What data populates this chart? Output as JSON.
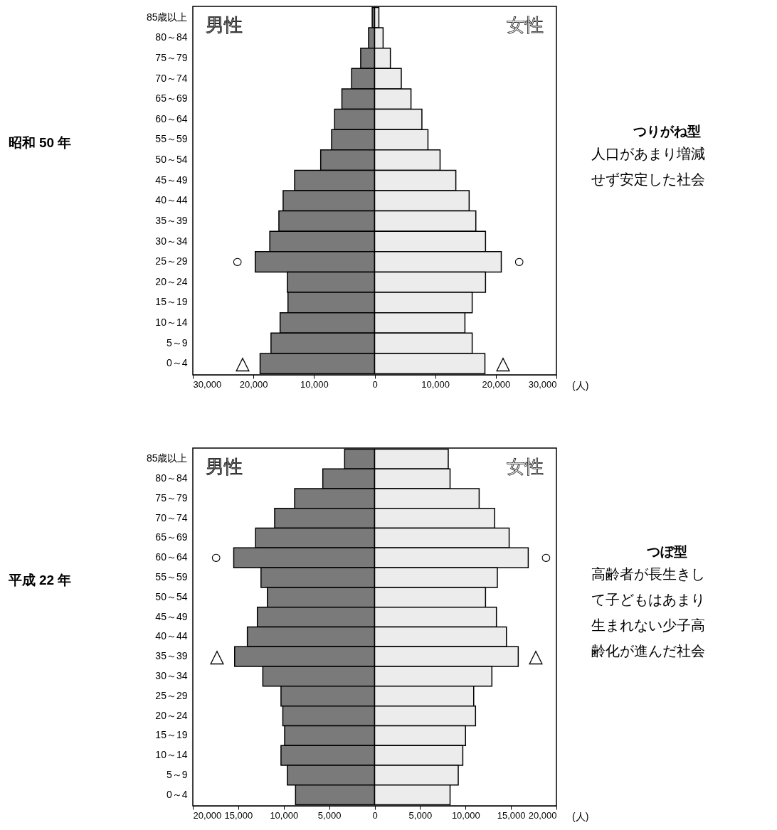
{
  "chart_data": [
    {
      "type": "bar",
      "orientation": "horizontal",
      "stacked": true,
      "xlabel": "(人)",
      "grid": false,
      "categories": [
        "85歳以上",
        "80～84",
        "75～79",
        "70～74",
        "65～69",
        "60～64",
        "55～59",
        "50～54",
        "45～49",
        "40～44",
        "35～39",
        "30～34",
        "25～29",
        "20～24",
        "15～19",
        "10～14",
        "5～9",
        "0～4"
      ],
      "series": [
        {
          "name": "男性",
          "color": "#7a7a7a",
          "values": [
            -400,
            -1000,
            -2300,
            -3800,
            -5400,
            -6600,
            -7100,
            -8900,
            -13200,
            -15100,
            -15800,
            -17300,
            -19700,
            -14400,
            -14300,
            -15600,
            -17100,
            -18900
          ]
        },
        {
          "name": "女性",
          "color": "#ececec",
          "values": [
            700,
            1400,
            2600,
            4400,
            6000,
            7800,
            8800,
            10800,
            13400,
            15600,
            16700,
            18300,
            20900,
            18300,
            16100,
            14900,
            16100,
            18200
          ]
        }
      ],
      "xlim": [
        -30000,
        30000
      ],
      "xticks": [
        {
          "value": -30000,
          "label": "30,000"
        },
        {
          "value": -20000,
          "label": "20,000"
        },
        {
          "value": -10000,
          "label": "10,000"
        },
        0,
        {
          "value": 10000,
          "label": "10,000"
        },
        {
          "value": 20000,
          "label": "20,000"
        },
        {
          "value": 30000,
          "label": "30,000"
        }
      ],
      "annotations": [
        "昭和 50 年",
        "つりがね型",
        "人口があまり増減",
        "せず安定した社会",
        {
          "text": "○",
          "x": -19700,
          "y": "25～29"
        },
        {
          "text": "○",
          "x": 20900,
          "y": "25～29"
        },
        {
          "text": "△",
          "x": -18900,
          "y": "0～4"
        },
        {
          "text": "△",
          "x": 18200,
          "y": "0～4"
        }
      ]
    },
    {
      "type": "bar",
      "orientation": "horizontal",
      "stacked": true,
      "xlabel": "(人)",
      "grid": false,
      "categories": [
        "85歳以上",
        "80～84",
        "75～79",
        "70～74",
        "65～69",
        "60～64",
        "55～59",
        "50～54",
        "45～49",
        "40～44",
        "35～39",
        "30～34",
        "25～29",
        "20～24",
        "15～19",
        "10～14",
        "5～9",
        "0～4"
      ],
      "series": [
        {
          "name": "男性",
          "color": "#7a7a7a",
          "values": [
            -3300,
            -5700,
            -8800,
            -11000,
            -13100,
            -15500,
            -12500,
            -11800,
            -12900,
            -14000,
            -15400,
            -12300,
            -10300,
            -10100,
            -9900,
            -10300,
            -9600,
            -8700
          ]
        },
        {
          "name": "女性",
          "color": "#ececec",
          "values": [
            8100,
            8300,
            11500,
            13200,
            14800,
            16900,
            13500,
            12200,
            13400,
            14500,
            15800,
            12900,
            10900,
            11100,
            10000,
            9700,
            9200,
            8300
          ]
        }
      ],
      "xlim": [
        -20000,
        20000
      ],
      "xticks": [
        {
          "value": -20000,
          "label": "20,000"
        },
        {
          "value": -15000,
          "label": "15,000"
        },
        {
          "value": -10000,
          "label": "10,000"
        },
        {
          "value": -5000,
          "label": "5,000"
        },
        0,
        {
          "value": 5000,
          "label": "5,000"
        },
        {
          "value": 10000,
          "label": "10,000"
        },
        {
          "value": 15000,
          "label": "15,000"
        },
        {
          "value": 20000,
          "label": "20,000"
        }
      ],
      "annotations": [
        "平成 22 年",
        "つぼ型",
        "高齢者が長生きし",
        "て子どもはあまり",
        "生まれない少子高",
        "齢化が進んだ社会",
        {
          "text": "○",
          "x": -15500,
          "y": "60～64"
        },
        {
          "text": "○",
          "x": 16900,
          "y": "60～64"
        },
        {
          "text": "△",
          "x": -15400,
          "y": "35～39"
        },
        {
          "text": "△",
          "x": 15800,
          "y": "35～39"
        }
      ]
    }
  ]
}
